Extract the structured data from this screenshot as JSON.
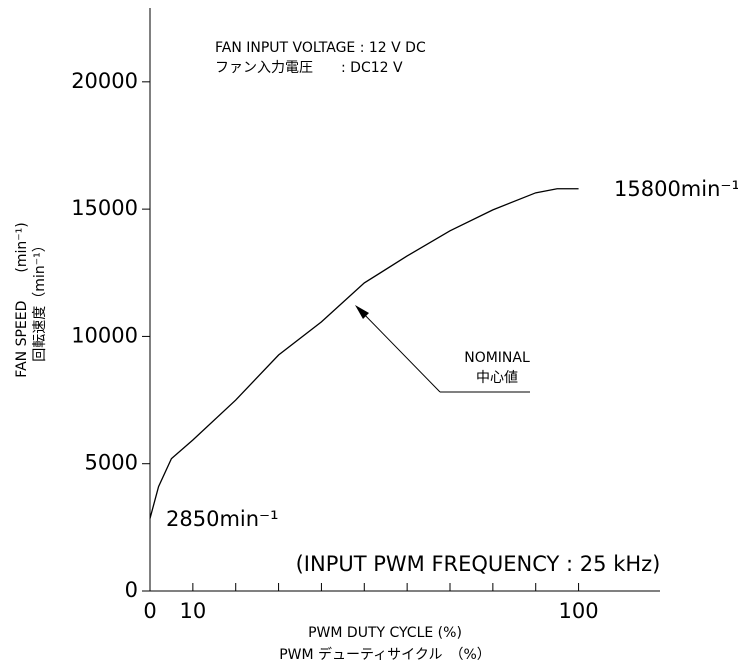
{
  "chart_data": {
    "type": "line",
    "annotations": {
      "voltage_en": "FAN INPUT VOLTAGE : 12 V DC",
      "voltage_jp": "ファン入力電圧　　: DC12 V",
      "max_label": "15800min⁻¹",
      "min_label": "2850min⁻¹",
      "nominal_en": "NOMINAL",
      "nominal_jp": "中心値",
      "frequency": "(INPUT PWM FREQUENCY : 25 kHz)"
    },
    "ylabel": "FAN SPEED　　(min⁻¹)",
    "ylabel_jp": "回転速度（min⁻¹）",
    "xlabel": "PWM DUTY CYCLE (%)",
    "xlabel_jp": "PWM デューティサイクル　（%）",
    "x": [
      0,
      2,
      5,
      10,
      20,
      30,
      40,
      50,
      60,
      70,
      80,
      90,
      95,
      100
    ],
    "values": [
      2850,
      4100,
      5200,
      5930,
      7500,
      9270,
      10570,
      12100,
      13160,
      14150,
      14970,
      15640,
      15800,
      15800
    ],
    "color": "#000000",
    "xlim": [
      0,
      119
    ],
    "xticks": [
      0,
      10,
      100
    ],
    "xminor_ticks": [
      20,
      30,
      40,
      50,
      60,
      70,
      80,
      90
    ],
    "ylim": [
      0,
      22900
    ],
    "yticks": [
      0,
      5000,
      10000,
      15000,
      20000
    ],
    "grid": false
  }
}
